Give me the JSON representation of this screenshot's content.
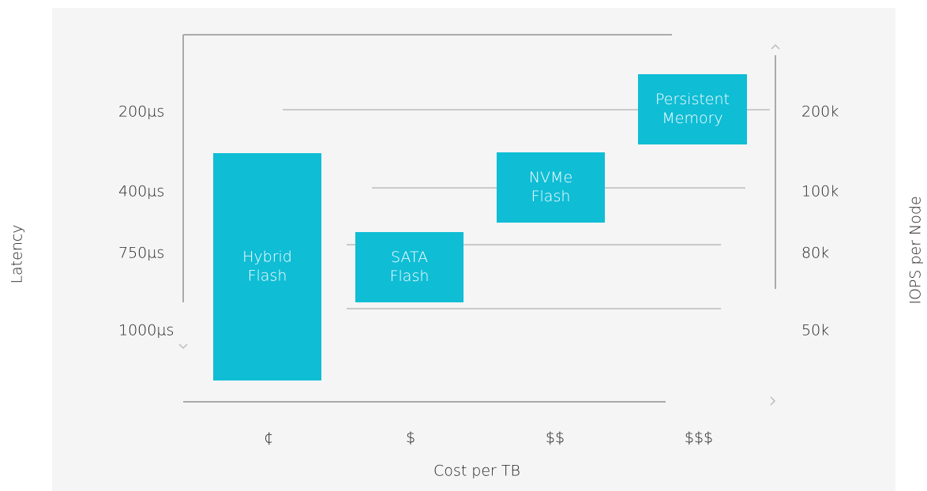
{
  "left_axis": {
    "label": "Latency",
    "ticks": [
      "200µs",
      "400µs",
      "750µs",
      "1000µs"
    ]
  },
  "right_axis": {
    "label": "IOPS per Node",
    "ticks": [
      "200k",
      "100k",
      "80k",
      "50k"
    ]
  },
  "bottom_axis": {
    "label": "Cost per TB",
    "ticks": [
      "¢",
      "$",
      "$$",
      "$$$"
    ]
  },
  "nodes": [
    {
      "lines": [
        "Hybrid",
        "Flash"
      ]
    },
    {
      "lines": [
        "SATA",
        "Flash"
      ]
    },
    {
      "lines": [
        "NVMe",
        "Flash"
      ]
    },
    {
      "lines": [
        "Persistent",
        "Memory"
      ]
    }
  ]
}
